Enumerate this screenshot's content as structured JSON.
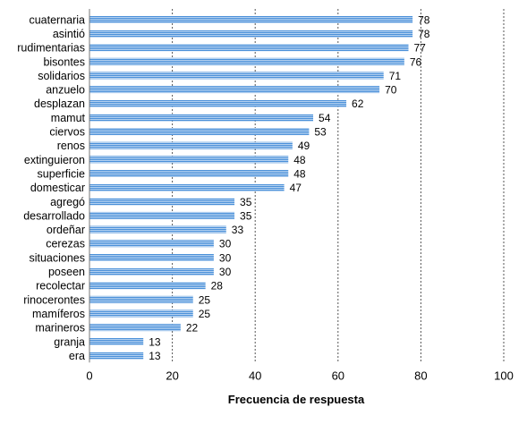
{
  "chart_data": {
    "type": "bar",
    "orientation": "horizontal",
    "categories": [
      "cuaternaria",
      "asintió",
      "rudimentarias",
      "bisontes",
      "solidarios",
      "anzuelo",
      "desplazan",
      "mamut",
      "ciervos",
      "renos",
      "extinguieron",
      "superficie",
      "domesticar",
      "agregó",
      "desarrollado",
      "ordeñar",
      "cerezas",
      "situaciones",
      "poseen",
      "recolectar",
      "rinocerontes",
      "mamíferos",
      "marineros",
      "granja",
      "era"
    ],
    "values": [
      78,
      78,
      77,
      76,
      71,
      70,
      62,
      54,
      53,
      49,
      48,
      48,
      47,
      35,
      35,
      33,
      30,
      30,
      30,
      28,
      25,
      25,
      22,
      13,
      13
    ],
    "xlabel": "Frecuencia de respuesta",
    "ylabel": "",
    "title": "",
    "xlim": [
      0,
      100
    ],
    "xticks": [
      0,
      20,
      40,
      60,
      80,
      100
    ],
    "grid": "vertical-dashed",
    "bar_color": "#4a90d9",
    "bar_pattern": "horizontal-stripes"
  }
}
